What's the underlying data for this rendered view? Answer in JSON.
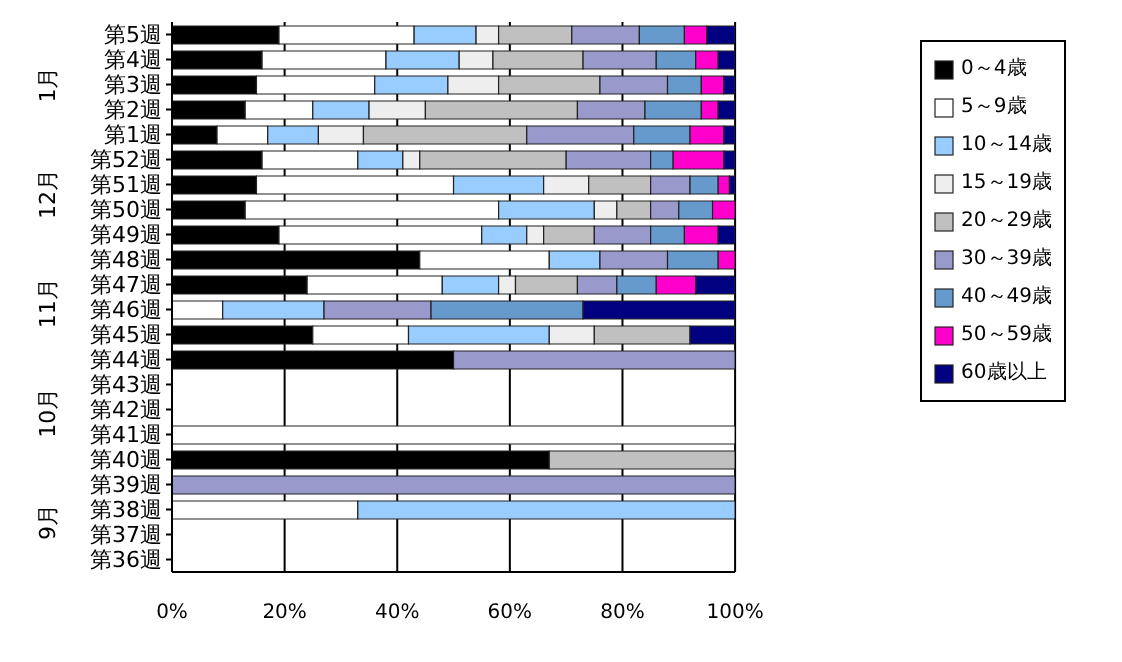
{
  "chart_data": {
    "type": "bar",
    "orientation": "horizontal",
    "stacked": true,
    "categories": [
      "第5週",
      "第4週",
      "第3週",
      "第2週",
      "第1週",
      "第52週",
      "第51週",
      "第50週",
      "第49週",
      "第48週",
      "第47週",
      "第46週",
      "第45週",
      "第44週",
      "第43週",
      "第42週",
      "第41週",
      "第40週",
      "第39週",
      "第38週",
      "第37週",
      "第36週"
    ],
    "series": [
      {
        "name": "0～4歳",
        "color": "#000000",
        "values": [
          19,
          16,
          15,
          13,
          8,
          16,
          15,
          13,
          19,
          44,
          24,
          0,
          25,
          50,
          null,
          null,
          0,
          67,
          0,
          0,
          null,
          null
        ]
      },
      {
        "name": "5～9歳",
        "color": "#ffffff",
        "values": [
          24,
          22,
          21,
          12,
          9,
          17,
          35,
          45,
          36,
          23,
          24,
          9,
          17,
          0,
          null,
          null,
          100,
          0,
          0,
          33,
          null,
          null
        ]
      },
      {
        "name": "10～14歳",
        "color": "#99ccff",
        "values": [
          11,
          13,
          13,
          10,
          9,
          8,
          16,
          17,
          8,
          9,
          10,
          18,
          25,
          0,
          null,
          null,
          0,
          0,
          0,
          67,
          null,
          null
        ]
      },
      {
        "name": "15～19歳",
        "color": "#eeeeee",
        "values": [
          4,
          6,
          9,
          10,
          8,
          3,
          8,
          4,
          3,
          0,
          3,
          0,
          8,
          0,
          null,
          null,
          0,
          0,
          0,
          0,
          null,
          null
        ]
      },
      {
        "name": "20～29歳",
        "color": "#c0c0c0",
        "values": [
          13,
          16,
          18,
          27,
          29,
          26,
          11,
          6,
          9,
          0,
          11,
          0,
          17,
          0,
          null,
          null,
          0,
          33,
          0,
          0,
          null,
          null
        ]
      },
      {
        "name": "30～39歳",
        "color": "#9999cc",
        "values": [
          12,
          13,
          12,
          12,
          19,
          15,
          7,
          5,
          10,
          12,
          7,
          19,
          0,
          50,
          null,
          null,
          0,
          0,
          100,
          0,
          null,
          null
        ]
      },
      {
        "name": "40～49歳",
        "color": "#6699cc",
        "values": [
          8,
          7,
          6,
          10,
          10,
          4,
          5,
          6,
          6,
          9,
          7,
          27,
          0,
          0,
          null,
          null,
          0,
          0,
          0,
          0,
          null,
          null
        ]
      },
      {
        "name": "50～59歳",
        "color": "#ff00cc",
        "values": [
          4,
          4,
          4,
          3,
          6,
          9,
          2,
          4,
          6,
          3,
          7,
          0,
          0,
          0,
          null,
          null,
          0,
          0,
          0,
          0,
          null,
          null
        ]
      },
      {
        "name": "60歳以上",
        "color": "#000080",
        "values": [
          5,
          3,
          2,
          3,
          2,
          2,
          1,
          0,
          3,
          0,
          7,
          27,
          8,
          0,
          null,
          null,
          0,
          0,
          0,
          0,
          null,
          null
        ]
      }
    ],
    "xlim": [
      0,
      100
    ],
    "xticks": [
      {
        "value": 0,
        "label": "0%"
      },
      {
        "value": 20,
        "label": "20%"
      },
      {
        "value": 40,
        "label": "40%"
      },
      {
        "value": 60,
        "label": "60%"
      },
      {
        "value": 80,
        "label": "80%"
      },
      {
        "value": 100,
        "label": "100%"
      }
    ],
    "grid": "x",
    "legend": "right",
    "annotations": [
      "1月",
      "12月",
      "11月",
      "10月",
      "9月"
    ]
  }
}
